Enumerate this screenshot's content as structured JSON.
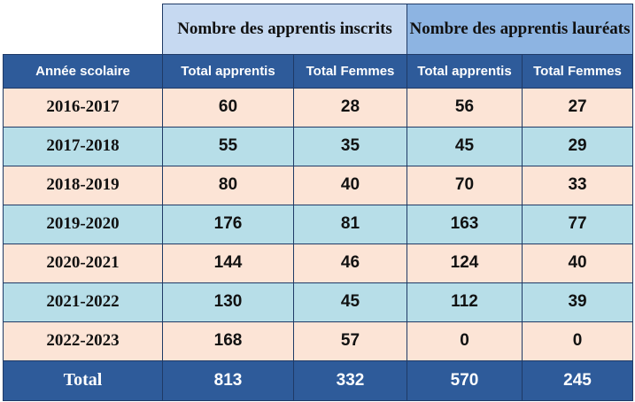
{
  "groups": {
    "inscrits": "Nombre des apprentis inscrits",
    "laureats": "Nombre des apprentis lauréats"
  },
  "columns": [
    "Année scolaire",
    "Total apprentis",
    "Total Femmes",
    "Total apprentis",
    "Total Femmes"
  ],
  "rows": [
    {
      "year": "2016-2017",
      "inscrits_total": "60",
      "inscrits_femmes": "28",
      "laureats_total": "56",
      "laureats_femmes": "27"
    },
    {
      "year": "2017-2018",
      "inscrits_total": "55",
      "inscrits_femmes": "35",
      "laureats_total": "45",
      "laureats_femmes": "29"
    },
    {
      "year": "2018-2019",
      "inscrits_total": "80",
      "inscrits_femmes": "40",
      "laureats_total": "70",
      "laureats_femmes": "33"
    },
    {
      "year": "2019-2020",
      "inscrits_total": "176",
      "inscrits_femmes": "81",
      "laureats_total": "163",
      "laureats_femmes": "77"
    },
    {
      "year": "2020-2021",
      "inscrits_total": "144",
      "inscrits_femmes": "46",
      "laureats_total": "124",
      "laureats_femmes": "40"
    },
    {
      "year": "2021-2022",
      "inscrits_total": "130",
      "inscrits_femmes": "45",
      "laureats_total": "112",
      "laureats_femmes": "39"
    },
    {
      "year": "2022-2023",
      "inscrits_total": "168",
      "inscrits_femmes": "57",
      "laureats_total": "0",
      "laureats_femmes": "0"
    }
  ],
  "total": {
    "label": "Total",
    "inscrits_total": "813",
    "inscrits_femmes": "332",
    "laureats_total": "570",
    "laureats_femmes": "245"
  },
  "colors": {
    "header_dark": "#2e5b9a",
    "group_inscrits": "#c6d9f1",
    "group_laureats": "#8db4e2",
    "row_peach": "#fce4d6",
    "row_blue": "#b7dee8"
  }
}
